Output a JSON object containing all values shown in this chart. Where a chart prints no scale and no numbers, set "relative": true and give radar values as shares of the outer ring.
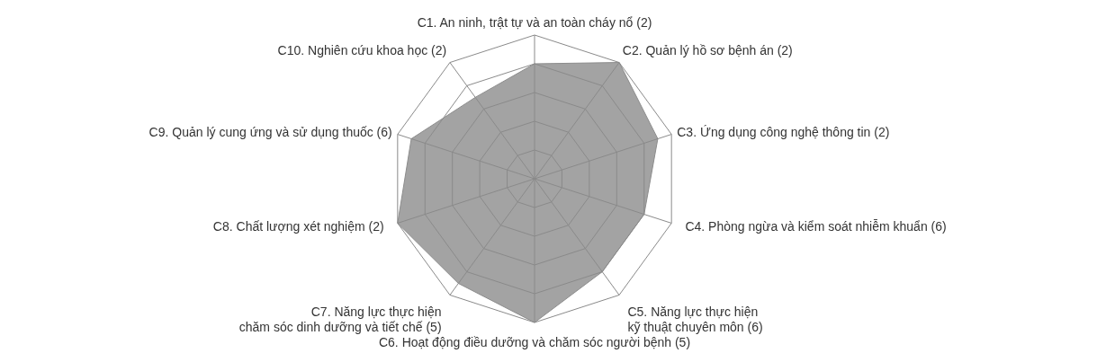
{
  "chart_data": {
    "type": "radar",
    "relative": true,
    "grid": true,
    "categories": [
      "C1. An ninh, trật tự và an toàn cháy nổ (2)",
      "C2. Quản lý hồ sơ bệnh án (2)",
      "C3. Ứng dụng công nghệ thông tin (2)",
      "C4. Phòng ngừa và kiểm soát nhiễm khuẩn (6)",
      "C5. Năng lực thực hiện\nkỹ thuật chuyên môn (6)",
      "C6. Hoạt động điều dưỡng và chăm sóc người bệnh (5)",
      "C7. Năng lực thực hiện\nchăm sóc dinh dưỡng và tiết chế (5)",
      "C8. Chất lượng xét nghiệm (2)",
      "C9. Quản lý cung ứng và sử dụng thuốc (6)",
      "C10. Nghiên cứu khoa học (2)"
    ],
    "series": [
      {
        "color": "#a3a3a3",
        "values": [
          0.8,
          1.0,
          0.9,
          0.8,
          0.8,
          1.0,
          0.9,
          1.0,
          0.9,
          0.7
        ]
      }
    ]
  }
}
